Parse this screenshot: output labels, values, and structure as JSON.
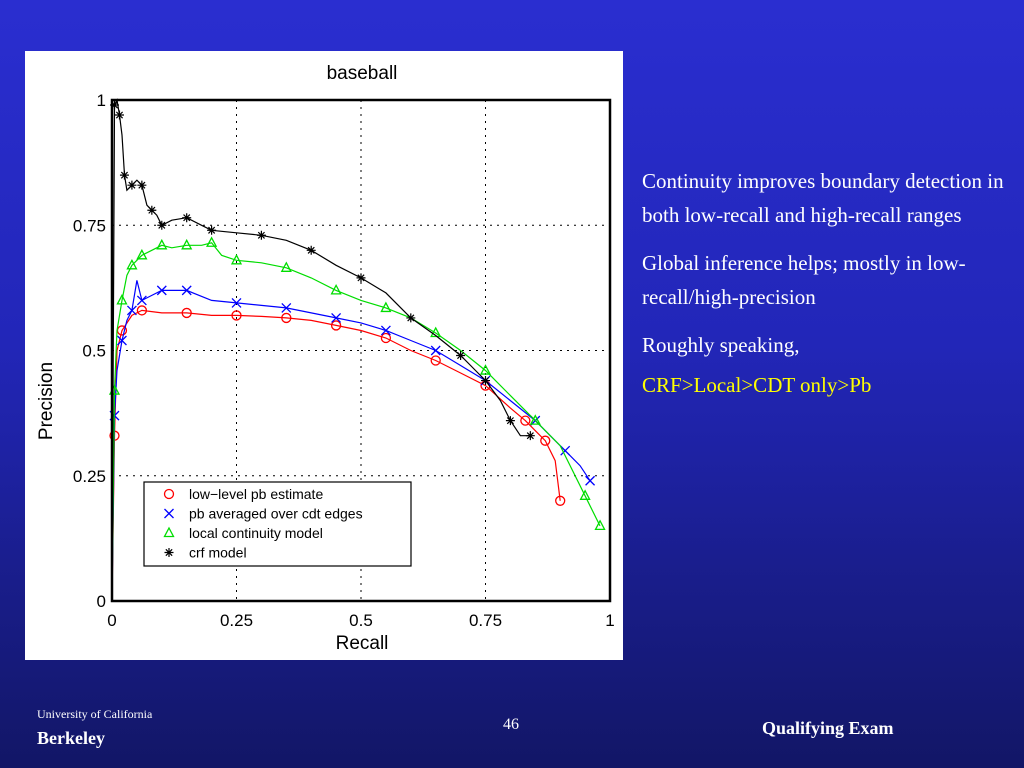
{
  "slide": {
    "bullets": [
      "Continuity improves boundary detection in both low-recall and high-recall ranges",
      "Global inference helps; mostly in low-recall/high-precision",
      "Roughly speaking,"
    ],
    "highlight": "CRF>Local>CDT only>Pb",
    "footer": {
      "university": "University of California",
      "campus": "Berkeley",
      "page_number": "46",
      "event": "Qualifying Exam"
    },
    "colors": {
      "text": "#ffffff",
      "highlight": "#ffff00"
    }
  },
  "chart_data": {
    "type": "line",
    "title": "baseball",
    "xlabel": "Recall",
    "ylabel": "Precision",
    "xlim": [
      0,
      1
    ],
    "ylim": [
      0,
      1
    ],
    "xticks": [
      "0",
      "0.25",
      "0.5",
      "0.75",
      "1"
    ],
    "yticks": [
      "0",
      "0.25",
      "0.5",
      "0.75",
      "1"
    ],
    "grid": true,
    "legend_position": "lower-left",
    "series": [
      {
        "name": "low−level pb estimate",
        "color": "#ff0000",
        "marker": "circle",
        "x": [
          0.0,
          0.005,
          0.01,
          0.02,
          0.04,
          0.06,
          0.1,
          0.15,
          0.2,
          0.25,
          0.3,
          0.35,
          0.4,
          0.45,
          0.5,
          0.55,
          0.6,
          0.65,
          0.7,
          0.75,
          0.8,
          0.83,
          0.85,
          0.87,
          0.89,
          0.9
        ],
        "y": [
          0.0,
          0.33,
          0.5,
          0.54,
          0.57,
          0.58,
          0.575,
          0.575,
          0.57,
          0.57,
          0.568,
          0.565,
          0.56,
          0.55,
          0.54,
          0.525,
          0.5,
          0.48,
          0.455,
          0.43,
          0.385,
          0.36,
          0.34,
          0.32,
          0.28,
          0.2
        ]
      },
      {
        "name": "pb averaged over cdt edges",
        "color": "#0000ff",
        "marker": "x",
        "x": [
          0.0,
          0.005,
          0.01,
          0.02,
          0.03,
          0.04,
          0.05,
          0.06,
          0.08,
          0.1,
          0.12,
          0.15,
          0.2,
          0.25,
          0.3,
          0.35,
          0.4,
          0.45,
          0.5,
          0.55,
          0.6,
          0.65,
          0.7,
          0.75,
          0.8,
          0.85,
          0.88,
          0.91,
          0.94,
          0.96
        ],
        "y": [
          0.0,
          0.37,
          0.46,
          0.52,
          0.56,
          0.58,
          0.64,
          0.6,
          0.61,
          0.62,
          0.62,
          0.62,
          0.6,
          0.595,
          0.59,
          0.585,
          0.575,
          0.565,
          0.555,
          0.54,
          0.52,
          0.5,
          0.47,
          0.44,
          0.4,
          0.36,
          0.33,
          0.3,
          0.27,
          0.24
        ]
      },
      {
        "name": "local continuity model",
        "color": "#00dd00",
        "marker": "triangle",
        "x": [
          0.0,
          0.005,
          0.01,
          0.02,
          0.03,
          0.04,
          0.05,
          0.06,
          0.08,
          0.1,
          0.12,
          0.15,
          0.18,
          0.2,
          0.22,
          0.25,
          0.3,
          0.35,
          0.4,
          0.45,
          0.5,
          0.55,
          0.6,
          0.65,
          0.7,
          0.75,
          0.8,
          0.85,
          0.9,
          0.95,
          0.98
        ],
        "y": [
          0.0,
          0.42,
          0.54,
          0.6,
          0.65,
          0.67,
          0.68,
          0.69,
          0.7,
          0.71,
          0.705,
          0.71,
          0.71,
          0.715,
          0.69,
          0.68,
          0.675,
          0.665,
          0.645,
          0.62,
          0.6,
          0.585,
          0.565,
          0.535,
          0.5,
          0.46,
          0.41,
          0.36,
          0.31,
          0.21,
          0.15
        ]
      },
      {
        "name": "crf model",
        "color": "#000000",
        "marker": "star",
        "x": [
          0.0,
          0.005,
          0.01,
          0.015,
          0.02,
          0.025,
          0.03,
          0.04,
          0.05,
          0.06,
          0.07,
          0.08,
          0.09,
          0.1,
          0.12,
          0.15,
          0.18,
          0.2,
          0.25,
          0.3,
          0.35,
          0.4,
          0.45,
          0.5,
          0.55,
          0.6,
          0.65,
          0.7,
          0.72,
          0.75,
          0.78,
          0.8,
          0.82,
          0.84
        ],
        "y": [
          0.0,
          0.99,
          1.0,
          0.97,
          0.93,
          0.85,
          0.82,
          0.83,
          0.84,
          0.83,
          0.79,
          0.78,
          0.77,
          0.75,
          0.76,
          0.765,
          0.75,
          0.74,
          0.735,
          0.73,
          0.72,
          0.7,
          0.67,
          0.645,
          0.615,
          0.565,
          0.53,
          0.49,
          0.47,
          0.44,
          0.4,
          0.36,
          0.33,
          0.33
        ]
      }
    ]
  }
}
